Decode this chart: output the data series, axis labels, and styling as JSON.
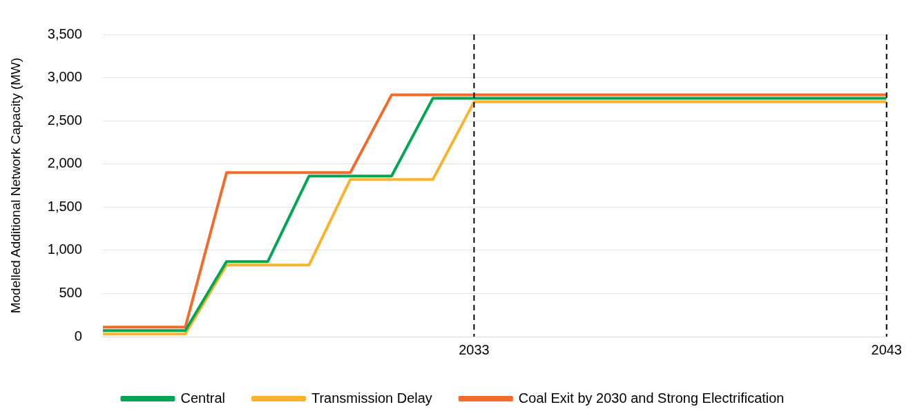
{
  "chart_data": {
    "type": "line",
    "ylabel": "Modelled Additional Network Capacity (MW)",
    "x": [
      2024,
      2025,
      2026,
      2027,
      2028,
      2029,
      2030,
      2031,
      2032,
      2033,
      2034,
      2035,
      2036,
      2037,
      2038,
      2039,
      2040,
      2041,
      2042,
      2043
    ],
    "series": [
      {
        "name": "Central",
        "color": "#00a651",
        "values": [
          70,
          70,
          70,
          870,
          870,
          1860,
          1860,
          1860,
          2760,
          2760,
          2760,
          2760,
          2760,
          2760,
          2760,
          2760,
          2760,
          2760,
          2760,
          2760
        ]
      },
      {
        "name": "Transmission Delay",
        "color": "#fbb22c",
        "values": [
          30,
          30,
          30,
          830,
          830,
          830,
          1820,
          1820,
          1820,
          2720,
          2720,
          2720,
          2720,
          2720,
          2720,
          2720,
          2720,
          2720,
          2720,
          2720
        ]
      },
      {
        "name": "Coal Exit by 2030 and Strong Electrification",
        "color": "#f26b2a",
        "values": [
          110,
          110,
          110,
          1900,
          1900,
          1900,
          1900,
          2800,
          2800,
          2800,
          2800,
          2800,
          2800,
          2800,
          2800,
          2800,
          2800,
          2800,
          2800,
          2800
        ]
      }
    ],
    "xlim": [
      2024,
      2043
    ],
    "xticks": [
      2033,
      2043
    ],
    "ylim": [
      0,
      3500
    ],
    "yticks": [
      0,
      500,
      {
        "value": 1000,
        "label": "1,000"
      },
      {
        "value": 1500,
        "label": "1,500"
      },
      {
        "value": 2000,
        "label": "2,000"
      },
      {
        "value": 2500,
        "label": "2,500"
      },
      {
        "value": 3000,
        "label": "3,000"
      },
      {
        "value": 3500,
        "label": "3,500"
      }
    ],
    "ref_lines": [
      {
        "axis": "x",
        "value": 2033,
        "color": "#000000",
        "line_style": "dashed"
      },
      {
        "axis": "x",
        "value": 2043,
        "color": "#000000",
        "line_style": "dashed"
      }
    ],
    "grid": "y",
    "legend": "bottom",
    "marker": "none",
    "line_style": "solid"
  }
}
